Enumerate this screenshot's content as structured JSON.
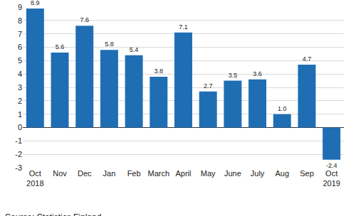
{
  "chart_data": {
    "type": "bar",
    "categories": [
      "Oct 2018",
      "Nov",
      "Dec",
      "Jan",
      "Feb",
      "March",
      "April",
      "May",
      "June",
      "July",
      "Aug",
      "Sep",
      "Oct 2019"
    ],
    "values": [
      8.9,
      5.6,
      7.6,
      5.8,
      5.4,
      3.8,
      7.1,
      2.7,
      3.5,
      3.6,
      1.0,
      4.7,
      -2.4
    ],
    "value_labels": [
      "8.9",
      "5.6",
      "7.6",
      "5.8",
      "5.4",
      "3.8",
      "7.1",
      "2.7",
      "3.5",
      "3.6",
      "1.0",
      "4.7",
      "-2.4"
    ],
    "color": "#1f6eb4",
    "ylim": [
      -3,
      9
    ],
    "yticks": [
      -3,
      -2,
      -1,
      0,
      1,
      2,
      3,
      4,
      5,
      6,
      7,
      8,
      9
    ],
    "grid": true,
    "data_labels": true,
    "source": "Source: Statistics Finland"
  }
}
